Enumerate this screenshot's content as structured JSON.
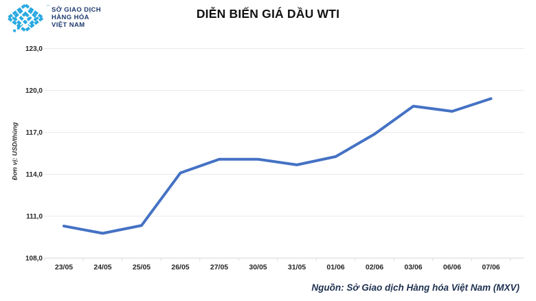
{
  "header": {
    "logo": {
      "line1": "SỞ GIAO DỊCH",
      "line2": "HÀNG HÓA",
      "line3": "VIỆT NAM",
      "trademark": "™",
      "icon_color": "#29a9e1",
      "text_color": "#1e3a6e"
    },
    "title": "DIỄN BIẾN GIÁ DẦU WTI"
  },
  "chart_data": {
    "type": "line",
    "title": "DIỄN BIẾN GIÁ DẦU WTI",
    "xlabel": "",
    "ylabel": "Đơn vị: USD/thùng",
    "categories": [
      "23/05",
      "24/05",
      "25/05",
      "26/05",
      "27/05",
      "30/05",
      "31/05",
      "01/06",
      "02/06",
      "03/06",
      "06/06",
      "07/06"
    ],
    "series": [
      {
        "name": "WTI",
        "values": [
          110.29,
          109.77,
          110.33,
          114.09,
          115.07,
          115.07,
          114.67,
          115.26,
          116.87,
          118.87,
          118.5,
          119.41
        ]
      }
    ],
    "ylim": [
      108.0,
      123.0
    ],
    "ytick_step": 3.0,
    "ytick_labels": [
      "108,0",
      "111,0",
      "114,0",
      "117,0",
      "120,0",
      "123,0"
    ],
    "grid": "horizontal",
    "legend_position": "none",
    "line_color": "#4472c4",
    "gridline_color": "#e9e9e9",
    "axis_color": "#d9d9d9"
  },
  "footer": {
    "source": "Nguồn: Sở Giao dịch Hàng hóa Việt Nam (MXV)"
  }
}
